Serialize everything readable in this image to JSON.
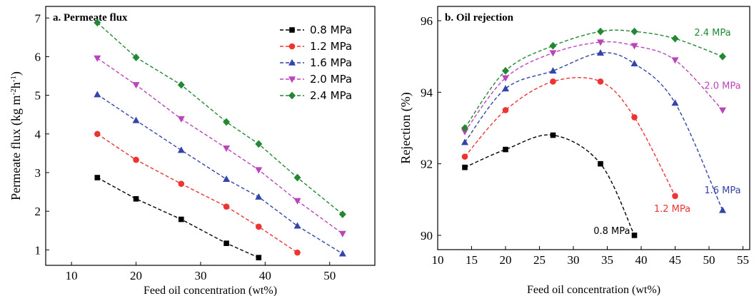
{
  "chart_data": [
    {
      "type": "line",
      "title": "a. Permeate flux",
      "xlabel": "Feed oil concentration (wt%)",
      "ylabel_parts": [
        "Permeate flux (kg m",
        "-2",
        "h",
        "-1",
        ")"
      ],
      "xlim": [
        6,
        57
      ],
      "ylim": [
        0.6,
        7.3
      ],
      "xticks": [
        10,
        20,
        30,
        40,
        50
      ],
      "yticks": [
        1,
        2,
        3,
        4,
        5,
        6,
        7
      ],
      "legend_position": "top-right",
      "series": [
        {
          "name": "0.8 MPa",
          "color": "#000000",
          "marker": "square",
          "x": [
            14,
            20,
            27,
            34,
            39
          ],
          "y": [
            2.87,
            2.32,
            1.79,
            1.17,
            0.8
          ]
        },
        {
          "name": "1.2 MPa",
          "color": "#ee3333",
          "marker": "circle",
          "x": [
            14,
            20,
            27,
            34,
            39,
            45
          ],
          "y": [
            4.0,
            3.33,
            2.71,
            2.12,
            1.6,
            0.93
          ]
        },
        {
          "name": "1.6 MPa",
          "color": "#3344aa",
          "marker": "triangle-up",
          "x": [
            14,
            20,
            27,
            34,
            39,
            45,
            52
          ],
          "y": [
            5.02,
            4.35,
            3.58,
            2.83,
            2.37,
            1.62,
            0.9
          ]
        },
        {
          "name": "2.0 MPa",
          "color": "#bb44bb",
          "marker": "triangle-down",
          "x": [
            14,
            20,
            27,
            34,
            39,
            45,
            52
          ],
          "y": [
            5.96,
            5.27,
            4.39,
            3.63,
            3.07,
            2.27,
            1.42
          ]
        },
        {
          "name": "2.4 MPa",
          "color": "#228833",
          "marker": "diamond",
          "x": [
            14,
            20,
            27,
            34,
            39,
            45,
            52
          ],
          "y": [
            6.88,
            5.98,
            5.27,
            4.31,
            3.74,
            2.87,
            1.92
          ]
        }
      ]
    },
    {
      "type": "line",
      "title": "b. Oil rejection",
      "xlabel": "Feed oil concentration (wt%)",
      "ylabel": "Rejection (%)",
      "xlim": [
        10,
        56
      ],
      "ylim": [
        89.6,
        96.4
      ],
      "xticks": [
        10,
        15,
        20,
        25,
        30,
        35,
        40,
        45,
        50,
        55
      ],
      "yticks": [
        90,
        92,
        94,
        96
      ],
      "series": [
        {
          "name": "0.8 MPa",
          "color": "#000000",
          "marker": "square",
          "x": [
            14,
            20,
            27,
            34,
            39
          ],
          "y": [
            91.9,
            92.4,
            92.8,
            92.0,
            90.0
          ]
        },
        {
          "name": "1.2 MPa",
          "color": "#ee3333",
          "marker": "circle",
          "x": [
            14,
            20,
            27,
            34,
            39,
            45
          ],
          "y": [
            92.2,
            93.5,
            94.3,
            94.3,
            93.3,
            91.1
          ]
        },
        {
          "name": "1.6 MPa",
          "color": "#3344aa",
          "marker": "triangle-up",
          "x": [
            14,
            20,
            27,
            34,
            39,
            45,
            52
          ],
          "y": [
            92.6,
            94.1,
            94.6,
            95.1,
            94.8,
            93.7,
            90.7
          ]
        },
        {
          "name": "2.0 MPa",
          "color": "#bb44bb",
          "marker": "triangle-down",
          "x": [
            14,
            20,
            27,
            34,
            39,
            45,
            52
          ],
          "y": [
            92.9,
            94.4,
            95.1,
            95.4,
            95.3,
            94.9,
            93.5
          ]
        },
        {
          "name": "2.4 MPa",
          "color": "#228833",
          "marker": "diamond",
          "x": [
            14,
            20,
            27,
            34,
            39,
            45,
            52
          ],
          "y": [
            93.0,
            94.6,
            95.3,
            95.7,
            95.7,
            95.5,
            95.0
          ]
        }
      ]
    }
  ]
}
